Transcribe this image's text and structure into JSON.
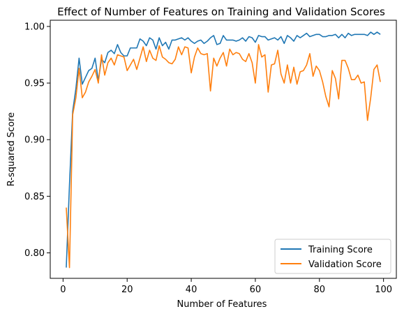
{
  "chart_data": {
    "type": "line",
    "title": "Effect of Number of Features on Training and Validation Scores",
    "xlabel": "Number of Features",
    "ylabel": "R-squared Score",
    "xlim": [
      -4,
      104
    ],
    "ylim": [
      0.7775,
      1.0055
    ],
    "xticks": [
      0,
      20,
      40,
      60,
      80,
      100
    ],
    "yticks": [
      0.8,
      0.85,
      0.9,
      0.95,
      1.0
    ],
    "ytick_labels": [
      "0.80",
      "0.85",
      "0.90",
      "0.95",
      "1.00"
    ],
    "grid": false,
    "legend_position": "lower-right",
    "x": [
      1,
      2,
      3,
      4,
      5,
      6,
      7,
      8,
      9,
      10,
      11,
      12,
      13,
      14,
      15,
      16,
      17,
      18,
      19,
      20,
      21,
      22,
      23,
      24,
      25,
      26,
      27,
      28,
      29,
      30,
      31,
      32,
      33,
      34,
      35,
      36,
      37,
      38,
      39,
      40,
      41,
      42,
      43,
      44,
      45,
      46,
      47,
      48,
      49,
      50,
      51,
      52,
      53,
      54,
      55,
      56,
      57,
      58,
      59,
      60,
      61,
      62,
      63,
      64,
      65,
      66,
      67,
      68,
      69,
      70,
      71,
      72,
      73,
      74,
      75,
      76,
      77,
      78,
      79,
      80,
      81,
      82,
      83,
      84,
      85,
      86,
      87,
      88,
      89,
      90,
      91,
      92,
      93,
      94,
      95,
      96,
      97,
      98,
      99
    ],
    "series": [
      {
        "name": "Training Score",
        "color": "#1f77b4",
        "values": [
          0.787,
          0.86,
          0.925,
          0.945,
          0.972,
          0.949,
          0.955,
          0.961,
          0.963,
          0.972,
          0.952,
          0.971,
          0.968,
          0.977,
          0.979,
          0.976,
          0.984,
          0.977,
          0.974,
          0.974,
          0.981,
          0.981,
          0.981,
          0.989,
          0.987,
          0.983,
          0.99,
          0.988,
          0.98,
          0.99,
          0.983,
          0.986,
          0.98,
          0.988,
          0.988,
          0.989,
          0.99,
          0.988,
          0.99,
          0.987,
          0.985,
          0.987,
          0.988,
          0.985,
          0.987,
          0.99,
          0.992,
          0.984,
          0.985,
          0.992,
          0.988,
          0.988,
          0.988,
          0.987,
          0.988,
          0.99,
          0.987,
          0.991,
          0.99,
          0.986,
          0.992,
          0.991,
          0.991,
          0.988,
          0.989,
          0.99,
          0.988,
          0.991,
          0.985,
          0.992,
          0.99,
          0.987,
          0.992,
          0.99,
          0.992,
          0.994,
          0.991,
          0.992,
          0.993,
          0.993,
          0.991,
          0.991,
          0.992,
          0.992,
          0.993,
          0.99,
          0.993,
          0.99,
          0.994,
          0.992,
          0.993,
          0.993,
          0.993,
          0.993,
          0.992,
          0.995,
          0.993,
          0.995,
          0.993
        ]
      },
      {
        "name": "Validation Score",
        "color": "#ff7f0e",
        "values": [
          0.84,
          0.787,
          0.922,
          0.937,
          0.963,
          0.937,
          0.942,
          0.951,
          0.956,
          0.962,
          0.95,
          0.975,
          0.957,
          0.968,
          0.972,
          0.966,
          0.975,
          0.974,
          0.973,
          0.961,
          0.966,
          0.971,
          0.962,
          0.972,
          0.982,
          0.969,
          0.979,
          0.972,
          0.97,
          0.983,
          0.973,
          0.971,
          0.968,
          0.967,
          0.971,
          0.982,
          0.975,
          0.982,
          0.981,
          0.959,
          0.973,
          0.981,
          0.976,
          0.975,
          0.976,
          0.943,
          0.972,
          0.965,
          0.972,
          0.977,
          0.965,
          0.98,
          0.975,
          0.977,
          0.976,
          0.971,
          0.969,
          0.976,
          0.968,
          0.95,
          0.984,
          0.973,
          0.975,
          0.942,
          0.966,
          0.967,
          0.979,
          0.958,
          0.95,
          0.966,
          0.95,
          0.964,
          0.949,
          0.96,
          0.961,
          0.966,
          0.976,
          0.956,
          0.965,
          0.961,
          0.951,
          0.938,
          0.929,
          0.961,
          0.954,
          0.936,
          0.97,
          0.97,
          0.963,
          0.953,
          0.953,
          0.957,
          0.95,
          0.951,
          0.917,
          0.937,
          0.962,
          0.966,
          0.951
        ]
      }
    ]
  }
}
